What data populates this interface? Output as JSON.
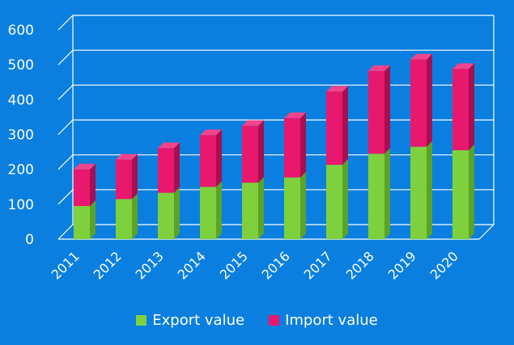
{
  "colors": {
    "background": "#0a7fe0",
    "gridline": "#ffffff",
    "export_front": "#7ed13c",
    "export_side": "#5aa328",
    "export_top": "#9be65a",
    "import_front": "#e8186f",
    "import_side": "#a80f4f",
    "import_top": "#f0458d"
  },
  "chart_data": {
    "type": "bar",
    "stacked": true,
    "title": "",
    "xlabel": "",
    "ylabel": "",
    "ylim": [
      0,
      600
    ],
    "yticks": [
      "0",
      "100",
      "200",
      "300",
      "400",
      "500",
      "600"
    ],
    "categories": [
      "2011",
      "2012",
      "2013",
      "2014",
      "2015",
      "2016",
      "2017",
      "2018",
      "2019",
      "2020"
    ],
    "series": [
      {
        "name": "Export value",
        "values": [
          95,
          115,
          133,
          150,
          162,
          177,
          213,
          245,
          265,
          255
        ]
      },
      {
        "name": "Import value",
        "values": [
          105,
          113,
          128,
          148,
          163,
          170,
          210,
          237,
          250,
          233
        ]
      }
    ],
    "grid": true,
    "legend_position": "bottom"
  }
}
